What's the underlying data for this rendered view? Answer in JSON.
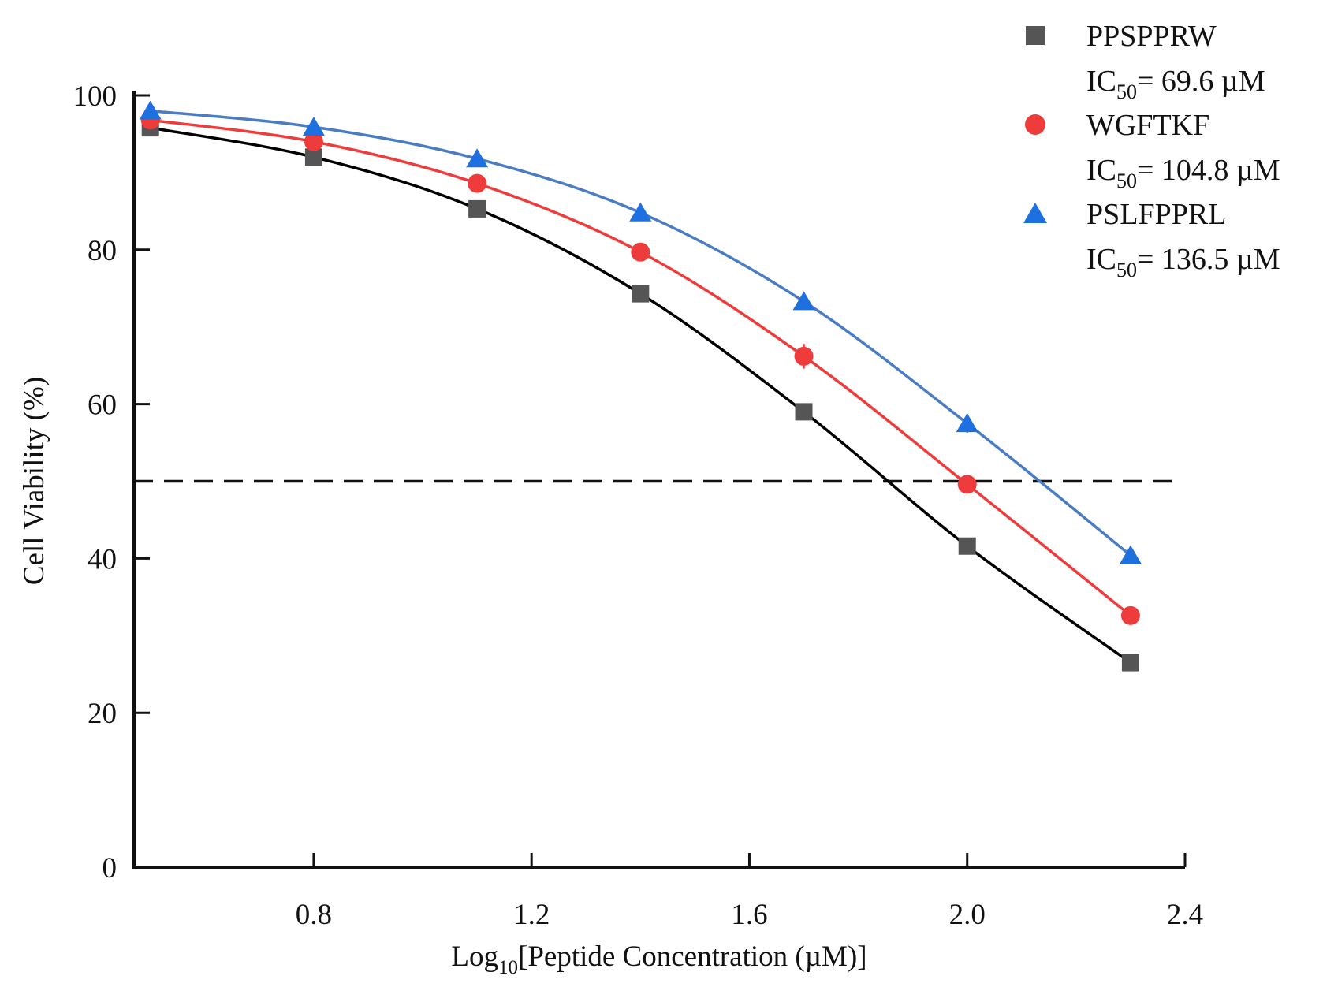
{
  "chart_data": {
    "type": "line",
    "title": "",
    "xlabel": {
      "prefix": "Log",
      "sub": "10",
      "rest": "[Peptide Concentration (µM)]"
    },
    "ylabel": "Cell Viability (%)",
    "xlim": [
      0.47,
      2.4
    ],
    "ylim": [
      0,
      100
    ],
    "xticks": [
      0.8,
      1.2,
      1.6,
      2.0,
      2.4
    ],
    "xtick_labels": [
      "0.8",
      "1.2",
      "1.6",
      "2.0",
      "2.4"
    ],
    "yticks": [
      0,
      20,
      40,
      60,
      80,
      100
    ],
    "ytick_labels": [
      "0",
      "20",
      "40",
      "60",
      "80",
      "100"
    ],
    "grid": false,
    "reference_line": {
      "y": 50,
      "style": "dashed"
    },
    "legend_placement": "top-right",
    "x": [
      0.5,
      0.8,
      1.1,
      1.4,
      1.7,
      2.0,
      2.3
    ],
    "series": [
      {
        "name": "PPSPPRW",
        "ic50_label": "= 69.6 µM",
        "marker": "square",
        "color": "#555555",
        "line_color": "#000000",
        "values": [
          95.8,
          92.0,
          85.3,
          74.3,
          59.0,
          41.6,
          26.5
        ],
        "errors": [
          0.8,
          0.8,
          0.8,
          0.8,
          0.8,
          0.8,
          0.8
        ]
      },
      {
        "name": "WGFTKF",
        "ic50_label": "= 104.8 µM",
        "marker": "circle",
        "color": "#ee3b3b",
        "line_color": "#ee3b3b",
        "values": [
          96.8,
          94.0,
          88.6,
          79.7,
          66.2,
          49.6,
          32.6
        ],
        "errors": [
          0.8,
          0.8,
          1.0,
          1.2,
          1.6,
          1.2,
          1.2
        ]
      },
      {
        "name": "PSLFPPRL",
        "ic50_label": "= 136.5 µM",
        "marker": "triangle",
        "color": "#1e6fe0",
        "line_color": "#4a7cc4",
        "values": [
          98.0,
          95.9,
          91.8,
          84.8,
          73.3,
          57.5,
          40.4
        ],
        "errors": [
          0.8,
          0.8,
          0.8,
          0.8,
          0.8,
          1.2,
          1.0
        ]
      }
    ],
    "ic50_prefix": "IC",
    "ic50_sub": "50"
  }
}
